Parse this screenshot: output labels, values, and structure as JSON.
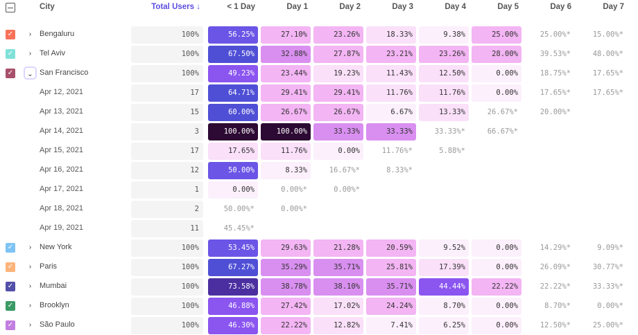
{
  "header": {
    "select_all": "",
    "city": "City",
    "total_users": "Total Users ↓",
    "columns": [
      "< 1 Day",
      "Day 1",
      "Day 2",
      "Day 3",
      "Day 4",
      "Day 5",
      "Day 6",
      "Day 7"
    ]
  },
  "rows": [
    {
      "type": "group",
      "label": "Bengaluru",
      "color": "#f9735b",
      "expanded": false,
      "total": "100%",
      "cells": [
        "56.25%",
        "27.10%",
        "23.26%",
        "18.33%",
        "9.38%",
        "25.00%",
        "25.00%*",
        "15.00%*"
      ]
    },
    {
      "type": "group",
      "label": "Tel Aviv",
      "color": "#80e1d9",
      "expanded": false,
      "total": "100%",
      "cells": [
        "67.50%",
        "32.88%",
        "27.87%",
        "23.21%",
        "23.26%",
        "28.00%",
        "39.53%*",
        "48.00%*"
      ]
    },
    {
      "type": "group",
      "label": "San Francisco",
      "color": "#a8506b",
      "expanded": true,
      "total": "100%",
      "cells": [
        "49.23%",
        "23.44%",
        "19.23%",
        "11.43%",
        "12.50%",
        "0.00%",
        "18.75%*",
        "17.65%*"
      ]
    },
    {
      "type": "sub",
      "label": "Apr 12, 2021",
      "total": "17",
      "cells": [
        "64.71%",
        "29.41%",
        "29.41%",
        "11.76%",
        "11.76%",
        "0.00%",
        "17.65%*",
        "17.65%*"
      ]
    },
    {
      "type": "sub",
      "label": "Apr 13, 2021",
      "total": "15",
      "cells": [
        "60.00%",
        "26.67%",
        "26.67%",
        "6.67%",
        "13.33%",
        "26.67%*",
        "20.00%*"
      ]
    },
    {
      "type": "sub",
      "label": "Apr 14, 2021",
      "total": "3",
      "cells": [
        "100.00%",
        "100.00%",
        "33.33%",
        "33.33%",
        "33.33%*",
        "66.67%*"
      ]
    },
    {
      "type": "sub",
      "label": "Apr 15, 2021",
      "total": "17",
      "cells": [
        "17.65%",
        "11.76%",
        "0.00%",
        "11.76%*",
        "5.88%*"
      ]
    },
    {
      "type": "sub",
      "label": "Apr 16, 2021",
      "total": "12",
      "cells": [
        "50.00%",
        "8.33%",
        "16.67%*",
        "8.33%*"
      ]
    },
    {
      "type": "sub",
      "label": "Apr 17, 2021",
      "total": "1",
      "cells": [
        "0.00%",
        "0.00%*",
        "0.00%*"
      ]
    },
    {
      "type": "sub",
      "label": "Apr 18, 2021",
      "total": "2",
      "cells": [
        "50.00%*",
        "0.00%*"
      ]
    },
    {
      "type": "sub",
      "label": "Apr 19, 2021",
      "total": "11",
      "cells": [
        "45.45%*"
      ]
    },
    {
      "type": "group",
      "label": "New York",
      "color": "#7fc3f5",
      "expanded": false,
      "total": "100%",
      "cells": [
        "53.45%",
        "29.63%",
        "21.28%",
        "20.59%",
        "9.52%",
        "0.00%",
        "14.29%*",
        "9.09%*"
      ]
    },
    {
      "type": "group",
      "label": "Paris",
      "color": "#fdb47b",
      "expanded": false,
      "total": "100%",
      "cells": [
        "67.27%",
        "35.29%",
        "35.71%",
        "25.81%",
        "17.39%",
        "0.00%",
        "26.09%*",
        "30.77%*"
      ]
    },
    {
      "type": "group",
      "label": "Mumbai",
      "color": "#5250a8",
      "expanded": false,
      "total": "100%",
      "cells": [
        "73.58%",
        "38.78%",
        "38.10%",
        "35.71%",
        "44.44%",
        "22.22%",
        "22.22%*",
        "33.33%*"
      ]
    },
    {
      "type": "group",
      "label": "Brooklyn",
      "color": "#3c9a66",
      "expanded": false,
      "total": "100%",
      "cells": [
        "46.88%",
        "27.42%",
        "17.02%",
        "24.24%",
        "8.70%",
        "0.00%",
        "8.70%*",
        "0.00%*"
      ]
    },
    {
      "type": "group",
      "label": "São Paulo",
      "color": "#c27ee0",
      "expanded": false,
      "total": "100%",
      "cells": [
        "46.30%",
        "22.22%",
        "12.82%",
        "7.41%",
        "6.25%",
        "0.00%",
        "12.50%*",
        "25.00%*"
      ]
    }
  ]
}
